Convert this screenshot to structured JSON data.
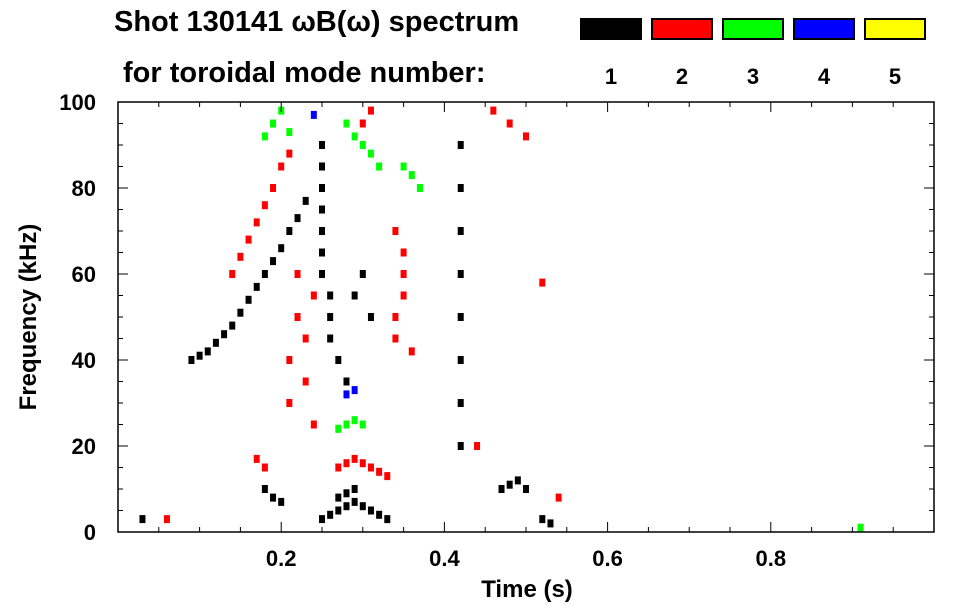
{
  "title_line1": "Shot 130141 ωB(ω) spectrum",
  "title_line2": "for toroidal mode number:",
  "legend": [
    {
      "label": "1",
      "color": "#000000"
    },
    {
      "label": "2",
      "color": "#ff0000"
    },
    {
      "label": "3",
      "color": "#00ff00"
    },
    {
      "label": "4",
      "color": "#0000ff"
    },
    {
      "label": "5",
      "color": "#ffff00"
    }
  ],
  "chart_data": {
    "type": "heatmap",
    "title": "Shot 130141 ωB(ω) spectrum",
    "subtitle": "for toroidal mode number:",
    "xlabel": "Time (s)",
    "ylabel": "Frequency (kHz)",
    "xlim": [
      0.0,
      1.0
    ],
    "ylim": [
      0,
      100
    ],
    "xticks": [
      0.2,
      0.4,
      0.6,
      0.8
    ],
    "xtick_labels": [
      "0.2",
      "0.4",
      "0.6",
      "0.8"
    ],
    "yticks": [
      0,
      20,
      40,
      60,
      80,
      100
    ],
    "ytick_labels": [
      "0",
      "20",
      "40",
      "60",
      "80",
      "100"
    ],
    "grid": false,
    "legend_position": "top-right",
    "series": [
      {
        "name": "1",
        "color": "#000000",
        "points": [
          [
            0.09,
            40
          ],
          [
            0.1,
            41
          ],
          [
            0.11,
            42
          ],
          [
            0.12,
            44
          ],
          [
            0.13,
            46
          ],
          [
            0.14,
            48
          ],
          [
            0.15,
            51
          ],
          [
            0.16,
            54
          ],
          [
            0.17,
            57
          ],
          [
            0.18,
            60
          ],
          [
            0.19,
            63
          ],
          [
            0.2,
            66
          ],
          [
            0.21,
            70
          ],
          [
            0.22,
            73
          ],
          [
            0.23,
            77
          ],
          [
            0.25,
            65
          ],
          [
            0.25,
            70
          ],
          [
            0.25,
            75
          ],
          [
            0.25,
            80
          ],
          [
            0.25,
            85
          ],
          [
            0.25,
            90
          ],
          [
            0.25,
            60
          ],
          [
            0.26,
            55
          ],
          [
            0.26,
            50
          ],
          [
            0.26,
            45
          ],
          [
            0.27,
            40
          ],
          [
            0.28,
            35
          ],
          [
            0.25,
            3
          ],
          [
            0.26,
            4
          ],
          [
            0.27,
            5
          ],
          [
            0.28,
            6
          ],
          [
            0.29,
            7
          ],
          [
            0.3,
            6
          ],
          [
            0.31,
            5
          ],
          [
            0.32,
            4
          ],
          [
            0.33,
            3
          ],
          [
            0.27,
            8
          ],
          [
            0.28,
            9
          ],
          [
            0.29,
            10
          ],
          [
            0.18,
            10
          ],
          [
            0.19,
            8
          ],
          [
            0.2,
            7
          ],
          [
            0.42,
            40
          ],
          [
            0.42,
            50
          ],
          [
            0.42,
            60
          ],
          [
            0.42,
            70
          ],
          [
            0.42,
            80
          ],
          [
            0.42,
            90
          ],
          [
            0.42,
            30
          ],
          [
            0.42,
            20
          ],
          [
            0.47,
            10
          ],
          [
            0.48,
            11
          ],
          [
            0.49,
            12
          ],
          [
            0.5,
            10
          ],
          [
            0.52,
            3
          ],
          [
            0.53,
            2
          ],
          [
            0.03,
            3
          ],
          [
            0.29,
            55
          ],
          [
            0.3,
            60
          ],
          [
            0.31,
            50
          ]
        ]
      },
      {
        "name": "2",
        "color": "#ff0000",
        "points": [
          [
            0.14,
            60
          ],
          [
            0.15,
            64
          ],
          [
            0.16,
            68
          ],
          [
            0.17,
            72
          ],
          [
            0.18,
            76
          ],
          [
            0.19,
            80
          ],
          [
            0.2,
            85
          ],
          [
            0.21,
            88
          ],
          [
            0.21,
            30
          ],
          [
            0.21,
            40
          ],
          [
            0.22,
            50
          ],
          [
            0.22,
            60
          ],
          [
            0.23,
            35
          ],
          [
            0.23,
            45
          ],
          [
            0.24,
            55
          ],
          [
            0.24,
            25
          ],
          [
            0.27,
            15
          ],
          [
            0.28,
            16
          ],
          [
            0.29,
            17
          ],
          [
            0.3,
            16
          ],
          [
            0.31,
            15
          ],
          [
            0.32,
            14
          ],
          [
            0.33,
            13
          ],
          [
            0.34,
            45
          ],
          [
            0.34,
            50
          ],
          [
            0.35,
            55
          ],
          [
            0.35,
            60
          ],
          [
            0.35,
            65
          ],
          [
            0.34,
            70
          ],
          [
            0.36,
            42
          ],
          [
            0.3,
            95
          ],
          [
            0.31,
            98
          ],
          [
            0.46,
            98
          ],
          [
            0.48,
            95
          ],
          [
            0.5,
            92
          ],
          [
            0.18,
            15
          ],
          [
            0.17,
            17
          ],
          [
            0.44,
            20
          ],
          [
            0.52,
            58
          ],
          [
            0.06,
            3
          ],
          [
            0.54,
            8
          ]
        ]
      },
      {
        "name": "3",
        "color": "#00ff00",
        "points": [
          [
            0.18,
            92
          ],
          [
            0.19,
            95
          ],
          [
            0.2,
            98
          ],
          [
            0.21,
            93
          ],
          [
            0.28,
            95
          ],
          [
            0.29,
            92
          ],
          [
            0.3,
            90
          ],
          [
            0.31,
            88
          ],
          [
            0.32,
            85
          ],
          [
            0.27,
            24
          ],
          [
            0.28,
            25
          ],
          [
            0.29,
            26
          ],
          [
            0.3,
            25
          ],
          [
            0.35,
            85
          ],
          [
            0.36,
            83
          ],
          [
            0.37,
            80
          ],
          [
            0.91,
            1
          ]
        ]
      },
      {
        "name": "4",
        "color": "#0000ff",
        "points": [
          [
            0.24,
            97
          ],
          [
            0.28,
            32
          ],
          [
            0.29,
            33
          ]
        ]
      },
      {
        "name": "5",
        "color": "#ffff00",
        "points": []
      }
    ]
  }
}
